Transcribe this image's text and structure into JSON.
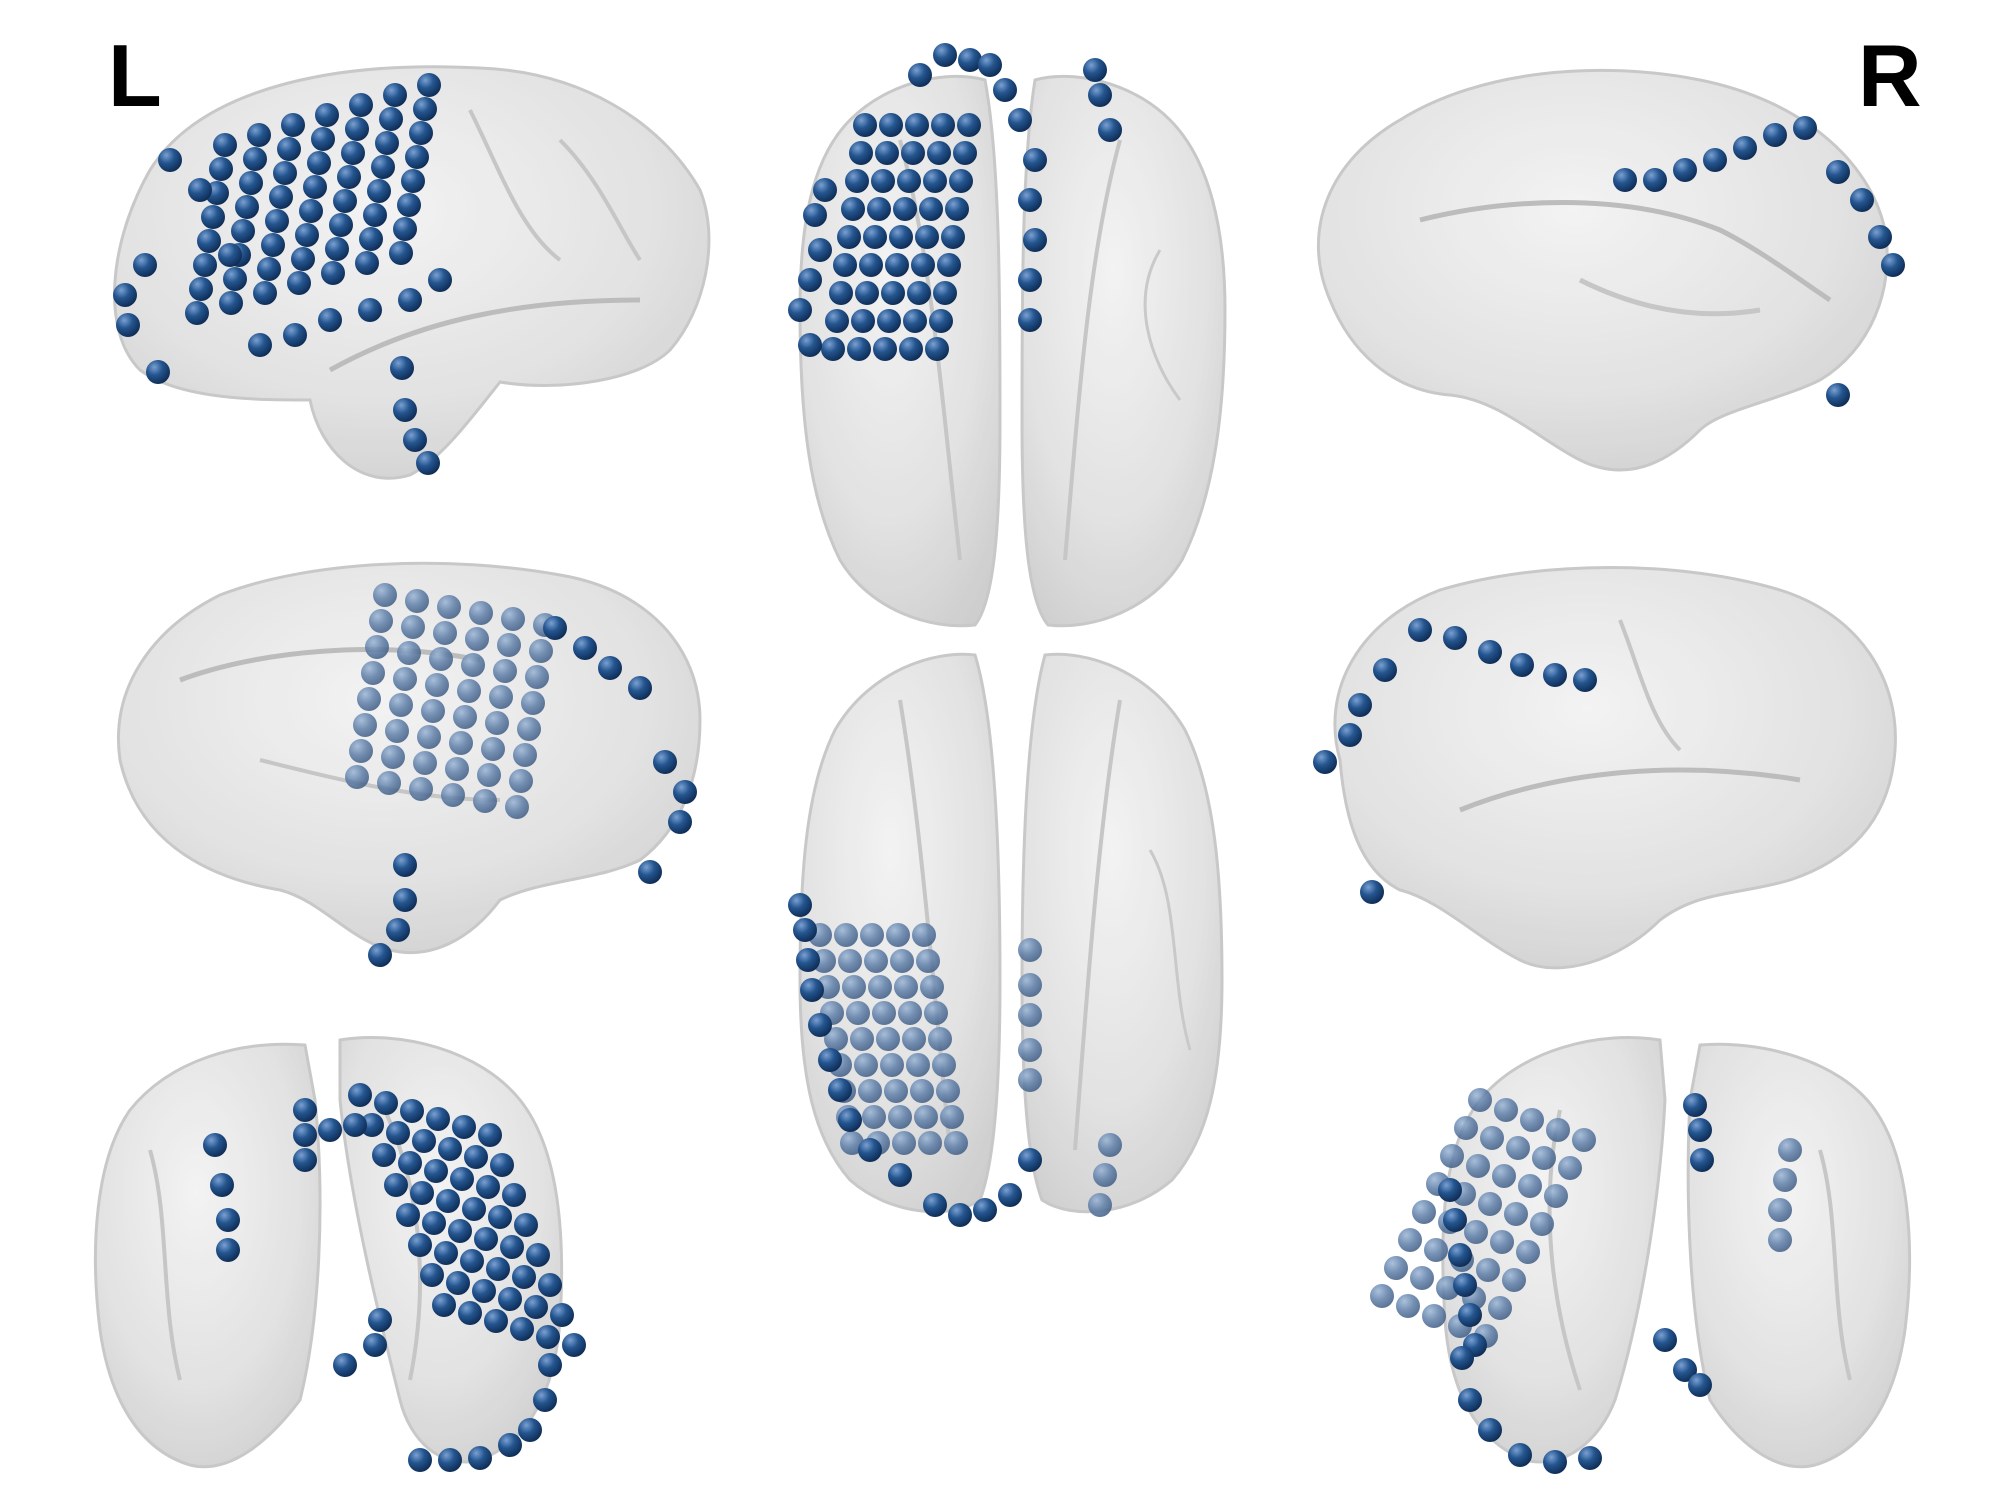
{
  "labels": {
    "left": "L",
    "right": "R"
  },
  "colors": {
    "background": "#ffffff",
    "cortex_fill": "#d9d9d9",
    "cortex_edge": "#bdbdbd",
    "sulcus": "#b8b8b8",
    "electrode": "#1f4e8c",
    "electrode_highlight": "#6f95c8",
    "electrode_shadow": "#0d2a52",
    "label_text": "#000000"
  },
  "views": [
    {
      "id": "left-lateral",
      "name": "left-lateral-view"
    },
    {
      "id": "dorsal",
      "name": "dorsal-view"
    },
    {
      "id": "right-medial",
      "name": "right-medial-view"
    },
    {
      "id": "left-medial",
      "name": "left-medial-view"
    },
    {
      "id": "ventral",
      "name": "ventral-view"
    },
    {
      "id": "right-lateral",
      "name": "right-lateral-view"
    },
    {
      "id": "posterior",
      "name": "posterior-view"
    },
    {
      "id": "anterior",
      "name": "anterior-view"
    }
  ]
}
